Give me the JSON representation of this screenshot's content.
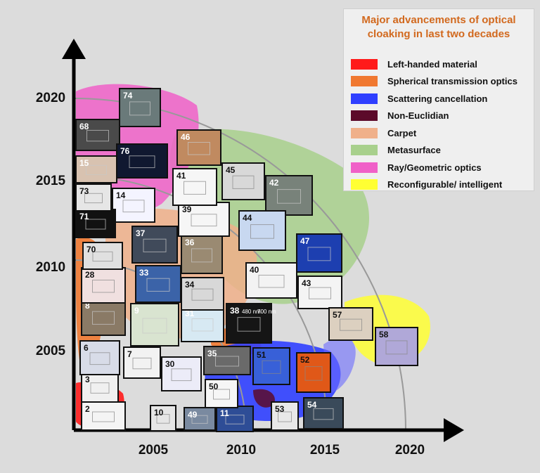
{
  "legend": {
    "title": "Major advancements of optical cloaking in last two decades",
    "items": [
      {
        "label": "Left-handed material",
        "color": "#ff1a1a"
      },
      {
        "label": "Spherical transmission optics",
        "color": "#f07830"
      },
      {
        "label": "Scattering cancellation",
        "color": "#2f3fff"
      },
      {
        "label": "Non-Euclidian",
        "color": "#5c0a2a"
      },
      {
        "label": "Carpet",
        "color": "#f0b08a"
      },
      {
        "label": "Metasurface",
        "color": "#a8d08c"
      },
      {
        "label": "Ray/Geometric optics",
        "color": "#f060c8"
      },
      {
        "label": "Reconfigurable/ intelligent",
        "color": "#ffff33"
      }
    ]
  },
  "x_axis": {
    "ticks": [
      "2005",
      "2010",
      "2015",
      "2020"
    ]
  },
  "y_axis": {
    "ticks": [
      "2020",
      "2015",
      "2010",
      "2005"
    ]
  },
  "tiles": [
    "2",
    "3",
    "6",
    "7",
    "8",
    "9",
    "10",
    "11",
    "14",
    "15",
    "28",
    "30",
    "31",
    "33",
    "34",
    "35",
    "36",
    "37",
    "38",
    "39",
    "40",
    "41",
    "42",
    "43",
    "44",
    "45",
    "46",
    "47",
    "49",
    "50",
    "51",
    "52",
    "53",
    "54",
    "57",
    "58",
    "68",
    "70",
    "71",
    "73",
    "74",
    "76"
  ],
  "tile_texts": {
    "38_line1": "480 nm",
    "38_line2": "700 nm"
  }
}
